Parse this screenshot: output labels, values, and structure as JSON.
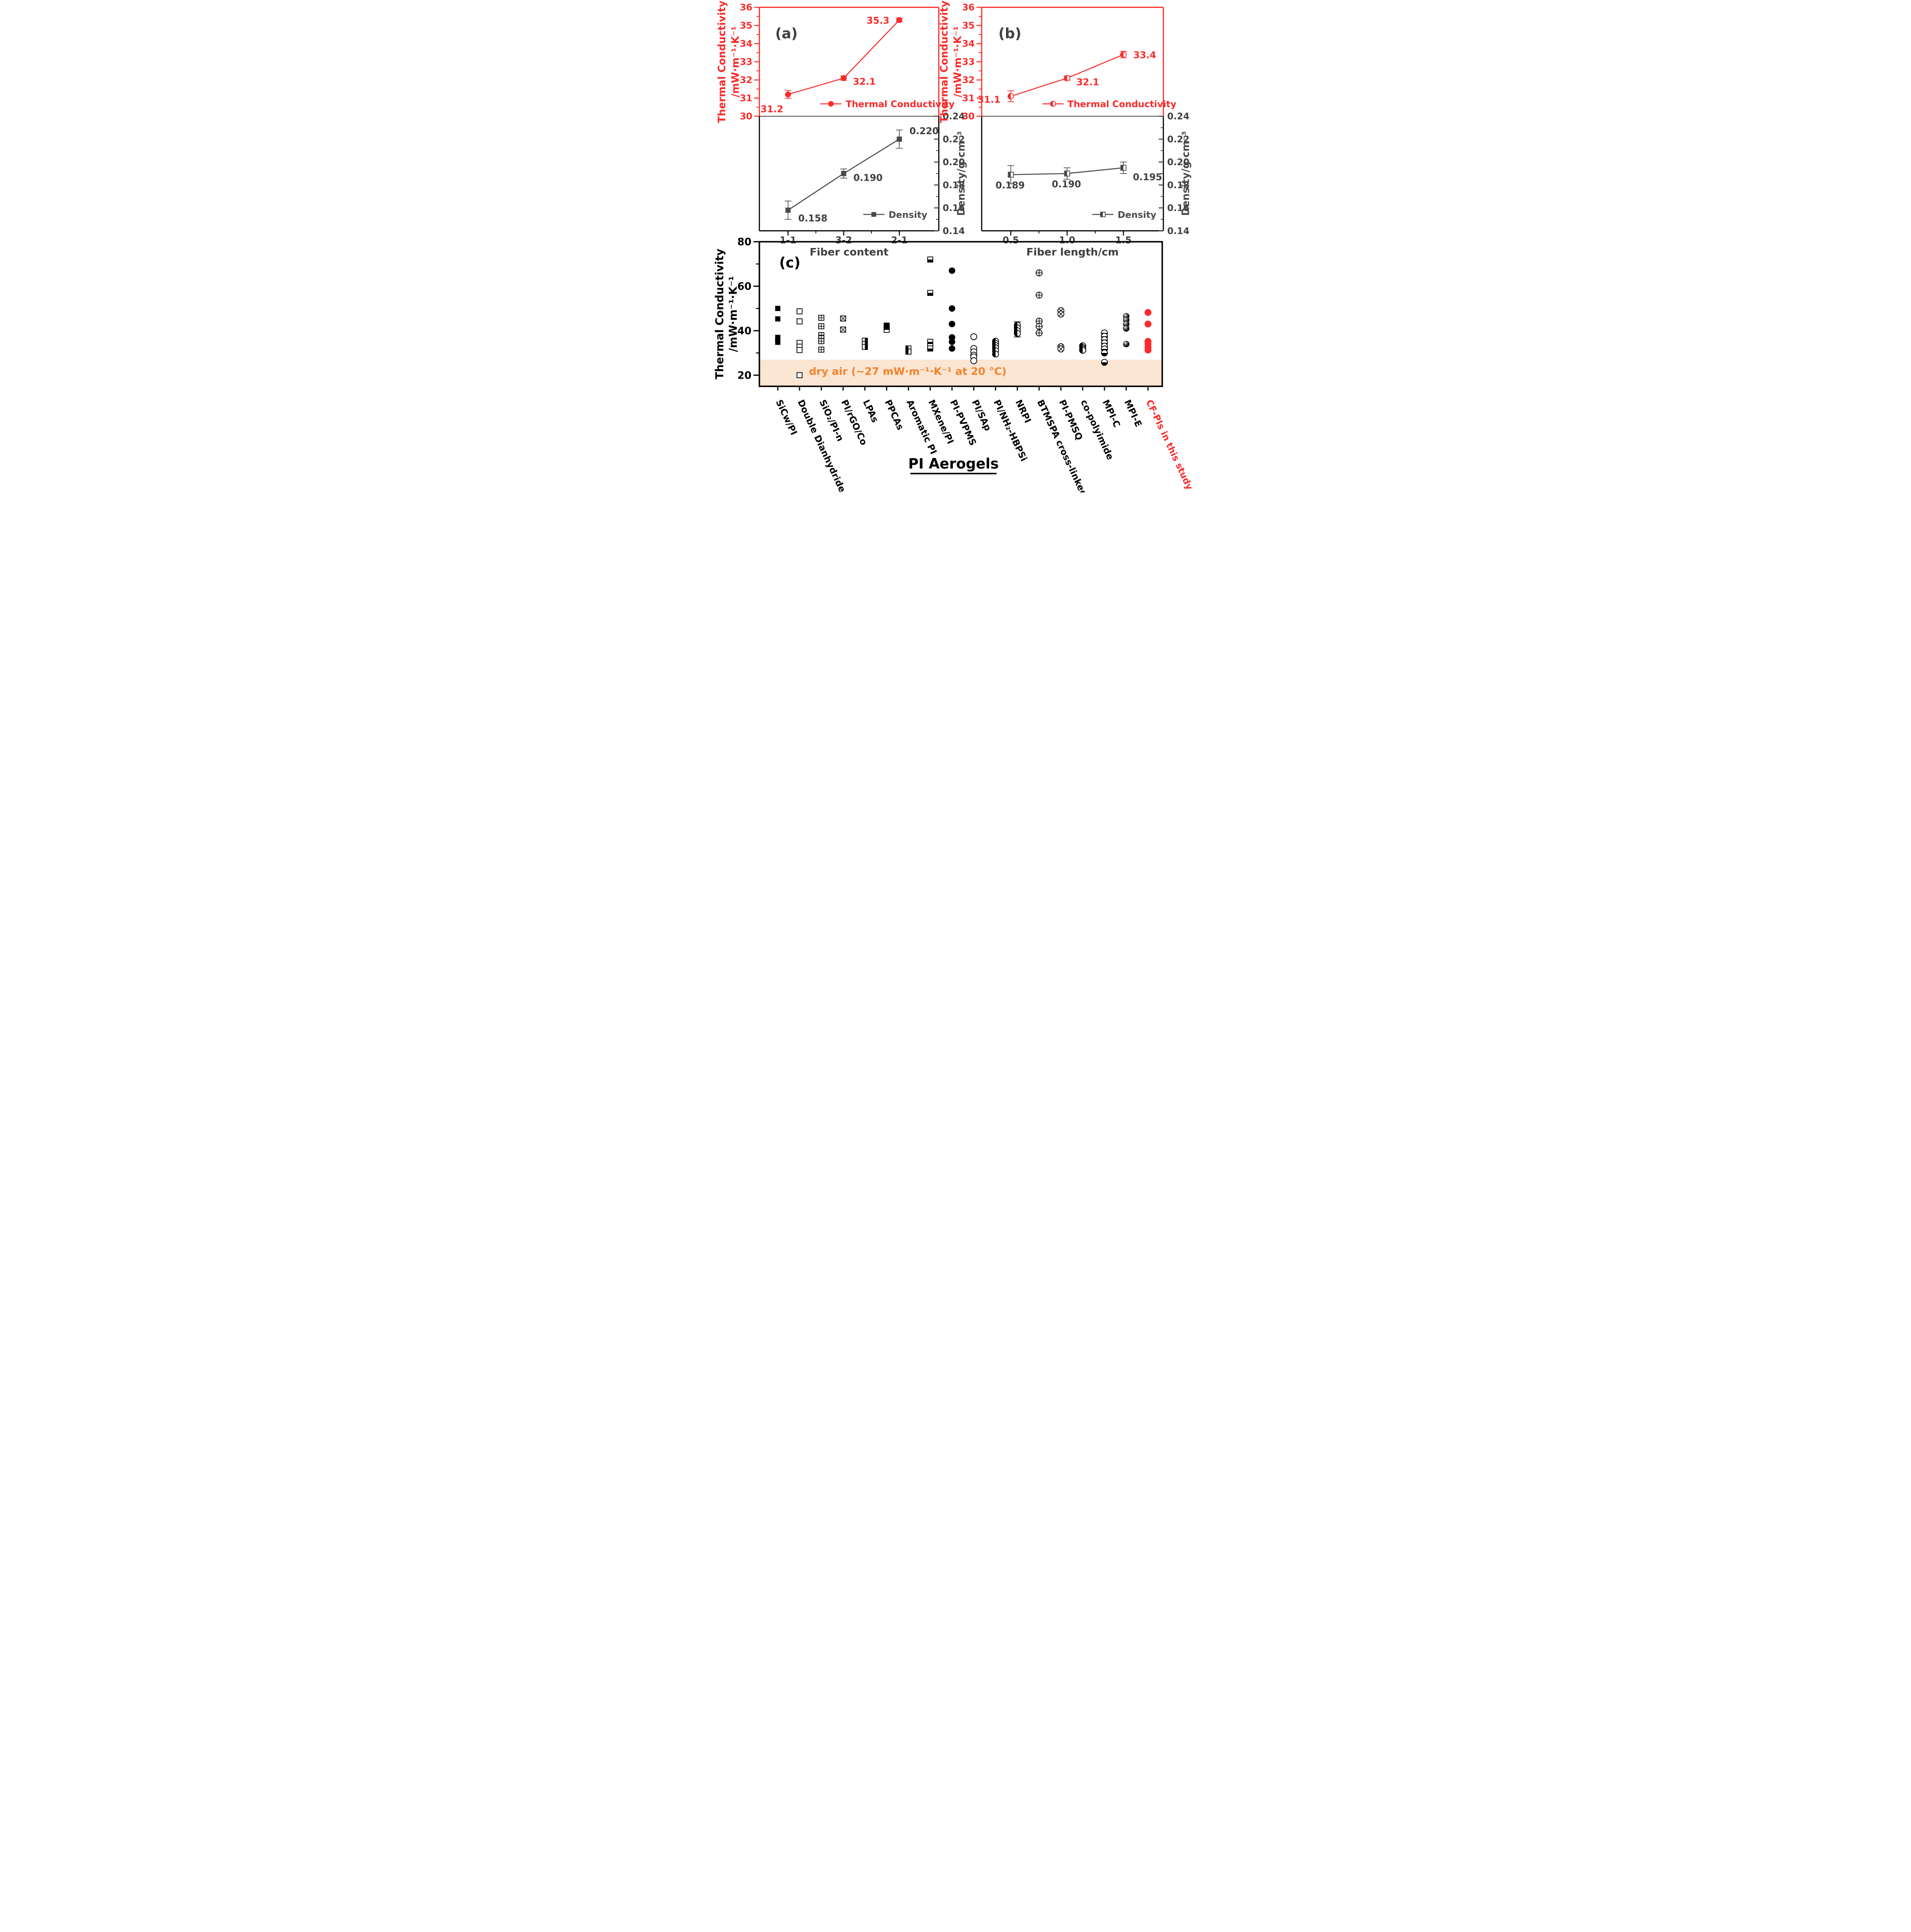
{
  "colors": {
    "red": "#FA2B2B",
    "gray": "#4A4A4A",
    "label_gray": "#3F3F3F",
    "black": "#000000",
    "orange": "#F5822A",
    "band": "#FBE5D3"
  },
  "chart_data": [
    {
      "type": "line",
      "tag": "(a)",
      "xlabel": "Fiber content",
      "categories": [
        "1-1",
        "3-2",
        "2-1"
      ],
      "left_axis": {
        "label_line1": "Thermal Conductivity",
        "label_line2": "/mW·m⁻¹·K⁻¹",
        "ylim": [
          30,
          36
        ],
        "ticks": [
          30,
          31,
          32,
          33,
          34,
          35,
          36
        ],
        "minor_ticks": [
          30.5,
          31.5,
          32.5,
          33.5,
          34.5,
          35.5
        ]
      },
      "right_axis": {
        "label": "Density/g·cm⁻³",
        "ylim": [
          0.14,
          0.24
        ],
        "ticks": [
          0.14,
          0.16,
          0.18,
          0.2,
          0.22,
          0.24
        ],
        "minor_ticks": [
          0.15,
          0.17,
          0.19,
          0.21,
          0.23
        ]
      },
      "series": [
        {
          "name": "Thermal Conductivity",
          "axis": "left",
          "marker": "circle-filled",
          "values": [
            31.2,
            32.1,
            35.3
          ],
          "errors": [
            0.22,
            0.12,
            0.1
          ],
          "point_labels": [
            "31.2",
            "32.1",
            "35.3"
          ]
        },
        {
          "name": "Density",
          "axis": "right",
          "marker": "square-filled",
          "values": [
            0.158,
            0.19,
            0.22
          ],
          "errors": [
            0.008,
            0.004,
            0.008
          ],
          "point_labels": [
            "0.158",
            "0.190",
            "0.220"
          ]
        }
      ]
    },
    {
      "type": "line",
      "tag": "(b)",
      "xlabel": "Fiber length/cm",
      "categories": [
        "0.5",
        "1.0",
        "1.5"
      ],
      "left_axis": {
        "label_line1": "Thermal Conductivity",
        "label_line2": "/mW·m⁻¹·K⁻¹",
        "ylim": [
          30,
          36
        ],
        "ticks": [
          30,
          31,
          32,
          33,
          34,
          35,
          36
        ],
        "minor_ticks": [
          30.5,
          31.5,
          32.5,
          33.5,
          34.5,
          35.5
        ]
      },
      "right_axis": {
        "label": "Density/g·cm⁻³",
        "ylim": [
          0.14,
          0.24
        ],
        "ticks": [
          0.14,
          0.16,
          0.18,
          0.2,
          0.22,
          0.24
        ],
        "minor_ticks": [
          0.15,
          0.17,
          0.19,
          0.21,
          0.23
        ]
      },
      "series": [
        {
          "name": "Thermal Conductivity",
          "axis": "left",
          "marker": "circle-left",
          "values": [
            31.1,
            32.1,
            33.4
          ],
          "errors": [
            0.3,
            0.12,
            0.18
          ],
          "point_labels": [
            "31.1",
            "32.1",
            "33.4"
          ]
        },
        {
          "name": "Density",
          "axis": "right",
          "marker": "square-left",
          "values": [
            0.189,
            0.19,
            0.195
          ],
          "errors": [
            0.008,
            0.005,
            0.005
          ],
          "point_labels": [
            "0.189",
            "0.190",
            "0.195"
          ]
        }
      ]
    },
    {
      "type": "scatter",
      "tag": "(c)",
      "title": "PI Aerogels",
      "ylabel_line1": "Thermal Conductivity",
      "ylabel_line2": "/mW·m⁻¹·K⁻¹",
      "ylim": [
        15,
        80
      ],
      "yticks": [
        20,
        40,
        60,
        80
      ],
      "minor_yticks": [
        30,
        50,
        70
      ],
      "band": {
        "label": "dry air (~27 mW·m⁻¹·K⁻¹ at 20 °C)",
        "ymax": 27
      },
      "groups": [
        {
          "label": "SiCw/PI",
          "marker": "square-filled",
          "values": [
            50,
            45.3,
            37,
            35.8,
            34.8
          ]
        },
        {
          "label": "Double Dianhydride PI",
          "marker": "square-open",
          "values": [
            48.7,
            44.2,
            34.5,
            32.8,
            31.3,
            20
          ]
        },
        {
          "label": "SiO₂/PI-n",
          "marker": "square-grid",
          "values": [
            45.8,
            42,
            38,
            36.6,
            35.3,
            31.5
          ]
        },
        {
          "label": "PI/rGO/Co",
          "marker": "square-x",
          "values": [
            45.5,
            40.5
          ]
        },
        {
          "label": "LPAs",
          "marker": "square-right",
          "values": [
            35.5,
            34,
            32.7
          ]
        },
        {
          "label": "PPCAs",
          "marker": "square-top",
          "values": [
            42.3,
            41.3,
            40.4
          ]
        },
        {
          "label": "Aromatic PI",
          "marker": "square-left",
          "values": [
            32,
            30.6
          ]
        },
        {
          "label": "MXene/PI",
          "marker": "square-bottom",
          "values": [
            72,
            57,
            35,
            33,
            32
          ]
        },
        {
          "label": "PI-PVPMS",
          "marker": "circle-filled",
          "values": [
            67,
            50,
            43,
            37,
            35,
            32
          ]
        },
        {
          "label": "PI/SAp",
          "marker": "circle-open",
          "values": [
            37.3,
            32,
            30.5,
            29,
            28.2,
            26.5
          ]
        },
        {
          "label": "PI/NH₂-HBPSi",
          "marker": "circle-left",
          "values": [
            35.3,
            34.3,
            33.3,
            32.3,
            31,
            29.5
          ]
        },
        {
          "label": "NRPI",
          "marker": "circle-left",
          "values": [
            42.5,
            41.3,
            40,
            38.8
          ],
          "error": {
            "center": 40.5,
            "plus": 3.5,
            "minus": 3.3
          }
        },
        {
          "label": "BTMSPA cross-linked PI",
          "marker": "circle-plus",
          "values": [
            66,
            56,
            44.3,
            42,
            39
          ]
        },
        {
          "label": "PI-PMSQ",
          "marker": "circle-x",
          "values": [
            49,
            47.5,
            32.8,
            31.8
          ]
        },
        {
          "label": "co-polyimide",
          "marker": "circle-left",
          "values": [
            33.2,
            32.4,
            31.8,
            31.2
          ],
          "error": {
            "center": 32.2,
            "plus": 1.2,
            "minus": 1.2
          }
        },
        {
          "label": "MPI-C",
          "marker": "circle-bottom",
          "values": [
            39,
            37.5,
            36,
            34.5,
            33,
            31.8,
            30,
            25.8
          ]
        },
        {
          "label": "MPI-E",
          "marker": "sphere",
          "values": [
            46.5,
            44.8,
            43,
            41,
            34
          ]
        },
        {
          "label": "CF-PIs in this study",
          "marker": "circle-filled",
          "color": "red",
          "label_color": "red",
          "values": [
            48.2,
            43,
            35.2,
            34,
            32.5,
            31.3
          ]
        }
      ]
    }
  ]
}
